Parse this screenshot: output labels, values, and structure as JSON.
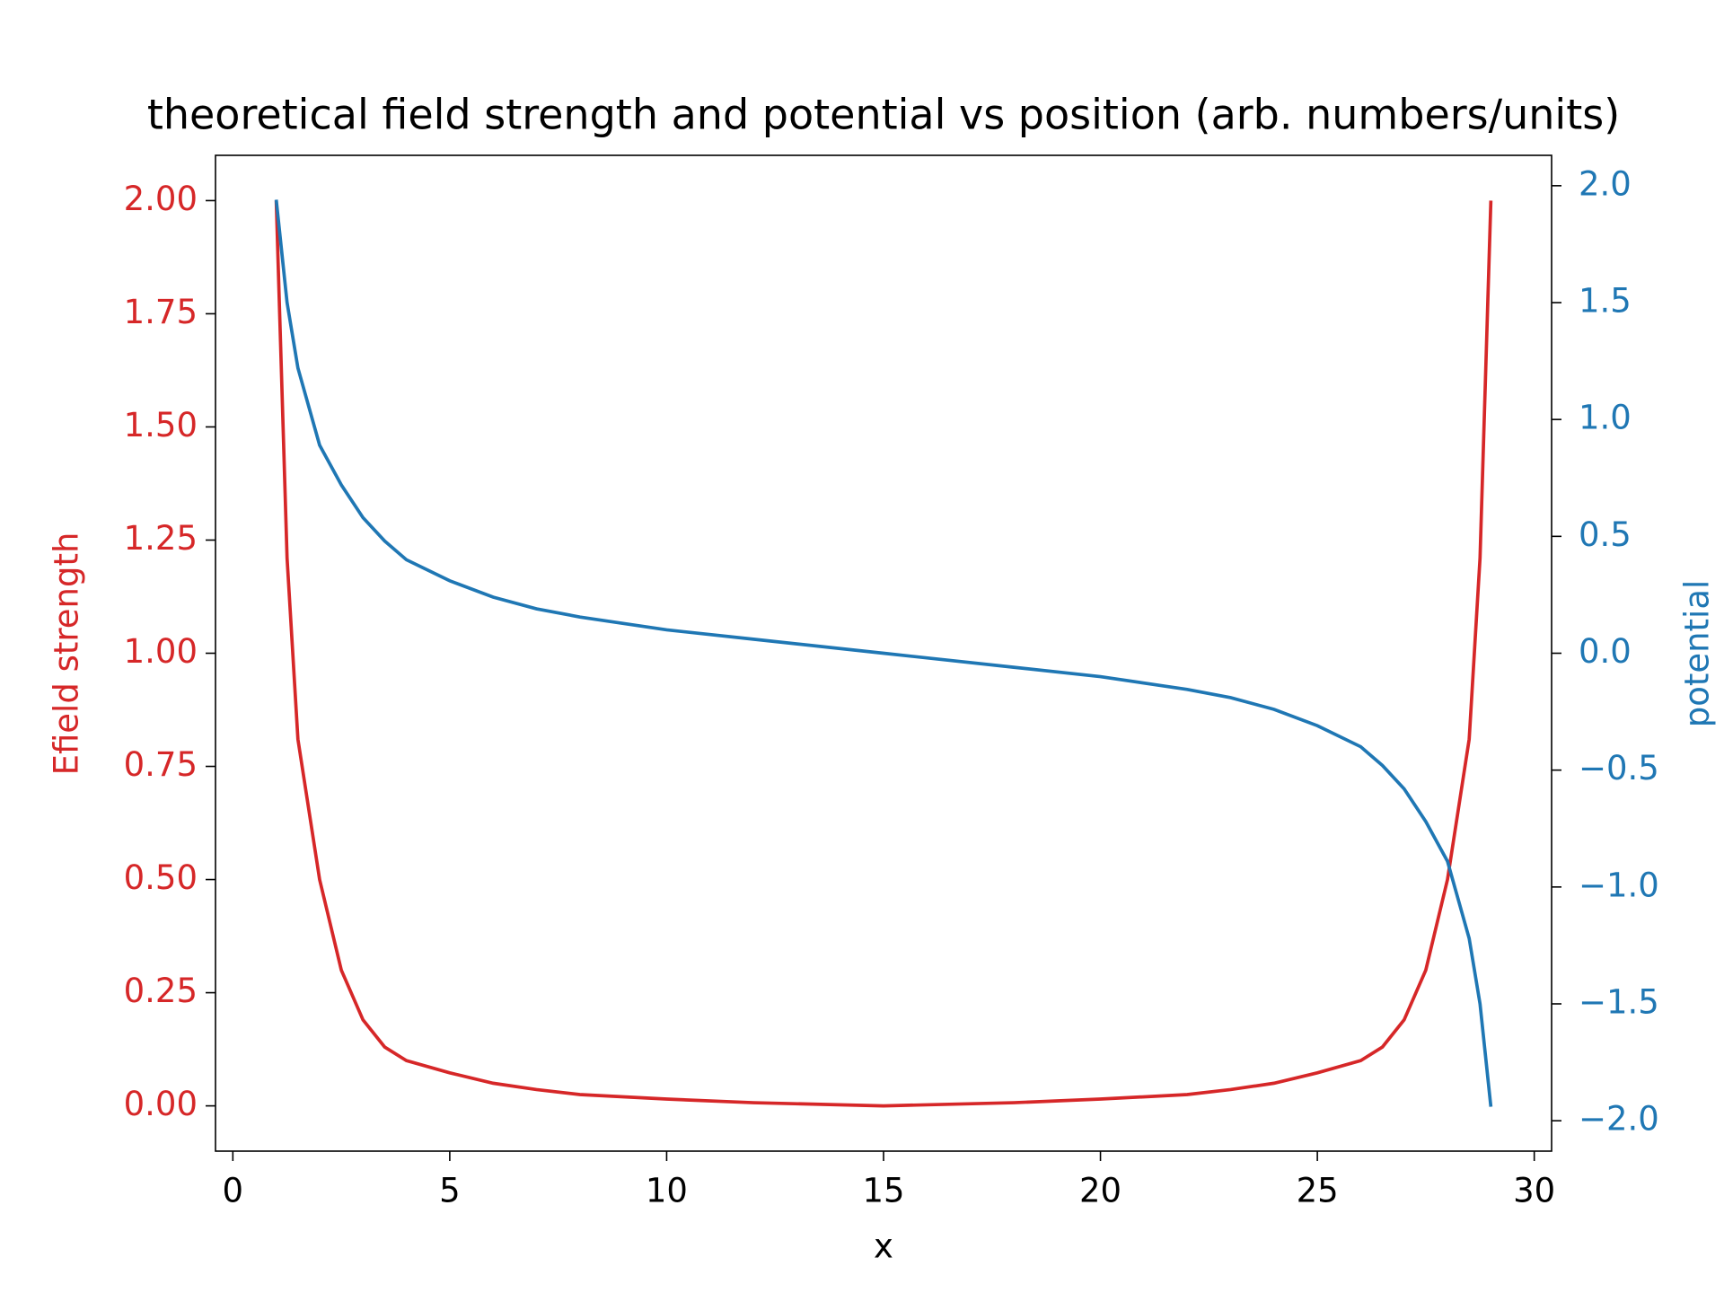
{
  "chart_data": {
    "type": "line",
    "title": "theoretical field strength and potential vs position (arb. numbers/units)",
    "x_label": "x",
    "y_label": "Efield strength",
    "y2_label": "potential",
    "x": [
      1,
      1.25,
      1.5,
      2,
      2.5,
      3,
      3.5,
      4,
      5,
      6,
      7,
      8,
      10,
      12,
      15,
      18,
      20,
      22,
      23,
      24,
      25,
      26,
      26.5,
      27,
      27.5,
      28,
      28.5,
      28.75,
      29
    ],
    "series": [
      {
        "name": "Efield strength",
        "color": "#d62728",
        "axis": "y",
        "values": [
          2.0,
          1.21,
          0.81,
          0.5,
          0.3,
          0.19,
          0.13,
          0.1,
          0.073,
          0.05,
          0.036,
          0.025,
          0.015,
          0.007,
          0,
          0.007,
          0.015,
          0.025,
          0.036,
          0.05,
          0.073,
          0.1,
          0.13,
          0.19,
          0.3,
          0.5,
          0.81,
          1.21,
          2.0
        ]
      },
      {
        "name": "potential",
        "color": "#1f77b4",
        "axis": "y2",
        "values": [
          1.94,
          1.5,
          1.22,
          0.89,
          0.72,
          0.58,
          0.48,
          0.4,
          0.31,
          0.24,
          0.19,
          0.155,
          0.1,
          0.06,
          0,
          -0.06,
          -0.1,
          -0.155,
          -0.19,
          -0.24,
          -0.31,
          -0.4,
          -0.48,
          -0.58,
          -0.72,
          -0.89,
          -1.22,
          -1.5,
          -1.94
        ]
      }
    ],
    "xlim": [
      -0.4,
      30.4
    ],
    "xticks": [
      0,
      5,
      10,
      15,
      20,
      25,
      30
    ],
    "ylim": [
      -0.1,
      2.1
    ],
    "yticks": [
      {
        "value": 0,
        "label": "0.00"
      },
      {
        "value": 0.25,
        "label": "0.25"
      },
      {
        "value": 0.5,
        "label": "0.50"
      },
      {
        "value": 0.75,
        "label": "0.75"
      },
      {
        "value": 1,
        "label": "1.00"
      },
      {
        "value": 1.25,
        "label": "1.25"
      },
      {
        "value": 1.5,
        "label": "1.50"
      },
      {
        "value": 1.75,
        "label": "1.75"
      },
      {
        "value": 2,
        "label": "2.00"
      }
    ],
    "y2lim": [
      -2.13,
      2.13
    ],
    "y2ticks": [
      {
        "value": -2,
        "label": "−2.0"
      },
      {
        "value": -1.5,
        "label": "−1.5"
      },
      {
        "value": -1,
        "label": "−1.0"
      },
      {
        "value": -0.5,
        "label": "−0.5"
      },
      {
        "value": 0,
        "label": "0.0"
      },
      0.5,
      {
        "value": 1,
        "label": "1.0"
      },
      1.5,
      {
        "value": 2,
        "label": "2.0"
      }
    ],
    "grid": false
  }
}
